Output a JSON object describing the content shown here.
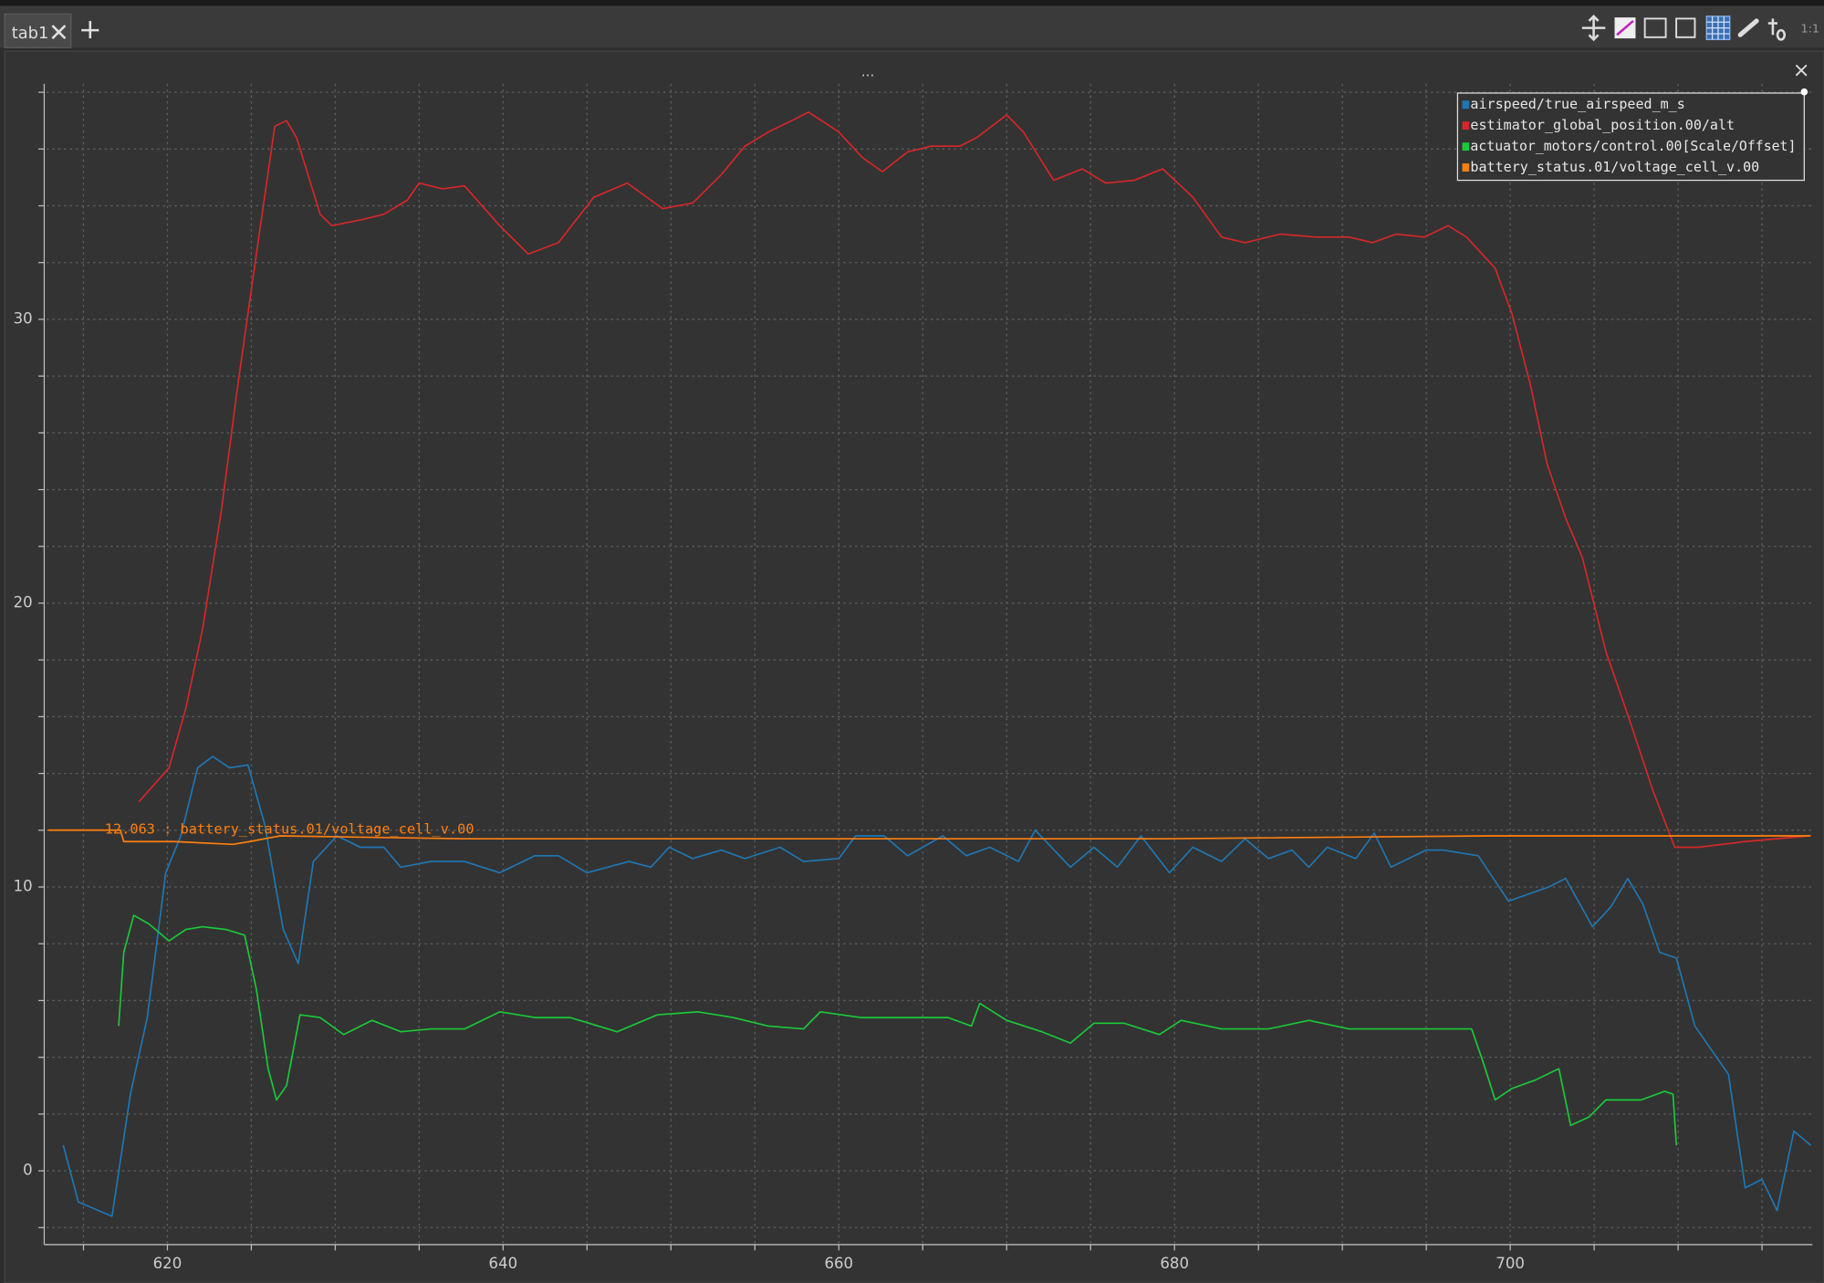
{
  "tab_bar": {
    "tabs": [
      "tab1"
    ],
    "zoom_label": "1:1"
  },
  "plot_title": "...",
  "chart_data": {
    "type": "line",
    "annotation": "12.063 : battery_status.01/voltage_cell_v.00",
    "xlim": [
      612.8,
      718.0
    ],
    "ylim": [
      -2.6,
      38.3
    ],
    "xticks": [
      620,
      640,
      660,
      680,
      700
    ],
    "yticks": [
      0,
      10,
      20,
      30
    ],
    "x_minor_ticks": [
      615,
      625,
      630,
      635,
      645,
      650,
      655,
      665,
      670,
      675,
      685,
      690,
      695,
      705,
      710,
      715
    ],
    "y_minor_ticks": [
      -2,
      2,
      4,
      6,
      8,
      12,
      14,
      16,
      18,
      22,
      24,
      26,
      28,
      32,
      34,
      36,
      38
    ],
    "grid": true,
    "legend": "top-right",
    "series": [
      {
        "name": "airspeed/true_airspeed_m_s",
        "color": "#1f77b4",
        "x": [
          613.8,
          614.7,
          616.7,
          617.8,
          618.8,
          619.9,
          620.8,
          621.8,
          622.7,
          623.7,
          624.8,
          625.8,
          626.9,
          627.8,
          628.7,
          630.1,
          631.5,
          632.9,
          633.9,
          635.7,
          637.7,
          639.8,
          641.9,
          643.3,
          645.0,
          647.5,
          648.8,
          649.9,
          651.3,
          653.0,
          654.4,
          656.5,
          657.9,
          660.0,
          661.0,
          662.7,
          664.1,
          666.2,
          667.6,
          669.0,
          670.7,
          671.7,
          673.8,
          675.2,
          676.6,
          678.0,
          679.7,
          681.1,
          682.8,
          684.2,
          685.6,
          687.0,
          688.0,
          689.1,
          690.8,
          691.9,
          692.9,
          695.0,
          696.0,
          698.1,
          699.9,
          702.3,
          703.3,
          704.9,
          706.0,
          707.0,
          707.9,
          708.9,
          709.9,
          711.0,
          713.0,
          714.0,
          715.0,
          715.9,
          716.9,
          717.9
        ],
        "values": [
          0.9,
          -1.1,
          -1.6,
          2.7,
          5.4,
          10.5,
          11.8,
          14.2,
          14.6,
          14.2,
          14.3,
          12.2,
          8.5,
          7.3,
          10.9,
          11.8,
          11.4,
          11.4,
          10.7,
          10.9,
          10.9,
          10.5,
          11.1,
          11.1,
          10.5,
          10.9,
          10.7,
          11.4,
          11.0,
          11.3,
          11.0,
          11.4,
          10.9,
          11.0,
          11.8,
          11.8,
          11.1,
          11.8,
          11.1,
          11.4,
          10.9,
          12.0,
          10.7,
          11.4,
          10.7,
          11.8,
          10.5,
          11.4,
          10.9,
          11.7,
          11.0,
          11.3,
          10.7,
          11.4,
          11.0,
          11.9,
          10.7,
          11.3,
          11.3,
          11.1,
          9.5,
          10.0,
          10.3,
          8.6,
          9.3,
          10.3,
          9.4,
          7.7,
          7.5,
          5.1,
          3.4,
          -0.6,
          -0.3,
          -1.4,
          1.4,
          0.9
        ]
      },
      {
        "name": "estimator_global_position.00/alt",
        "color": "#d62728",
        "x": [
          618.3,
          620.1,
          621.1,
          622.1,
          623.2,
          624.2,
          625.3,
          626.4,
          627.1,
          627.7,
          629.1,
          629.8,
          631.5,
          632.9,
          634.3,
          635.0,
          636.4,
          637.7,
          639.8,
          641.5,
          643.3,
          645.4,
          647.4,
          649.5,
          651.3,
          653.0,
          654.4,
          655.8,
          657.2,
          658.2,
          660.0,
          661.4,
          662.6,
          664.1,
          665.5,
          667.2,
          668.2,
          670.0,
          671.0,
          672.8,
          674.5,
          675.9,
          677.6,
          679.3,
          681.1,
          682.8,
          684.2,
          686.3,
          688.4,
          690.4,
          691.8,
          693.2,
          694.9,
          696.3,
          697.4,
          699.1,
          700.1,
          701.2,
          702.2,
          703.3,
          704.3,
          705.7,
          707.1,
          708.5,
          709.8,
          711.2,
          714.0,
          717.8
        ],
        "values": [
          13.0,
          14.2,
          16.3,
          19.1,
          23.2,
          27.7,
          32.3,
          36.8,
          37.0,
          36.4,
          33.7,
          33.3,
          33.5,
          33.7,
          34.2,
          34.8,
          34.6,
          34.7,
          33.3,
          32.3,
          32.7,
          34.3,
          34.8,
          33.9,
          34.1,
          35.1,
          36.1,
          36.6,
          37.0,
          37.3,
          36.6,
          35.7,
          35.2,
          35.9,
          36.1,
          36.1,
          36.4,
          37.2,
          36.6,
          34.9,
          35.3,
          34.8,
          34.9,
          35.3,
          34.3,
          32.9,
          32.7,
          33.0,
          32.9,
          32.9,
          32.7,
          33.0,
          32.9,
          33.3,
          32.9,
          31.8,
          30.2,
          27.7,
          24.9,
          23.0,
          21.6,
          18.3,
          15.9,
          13.4,
          11.4,
          11.4,
          11.6,
          11.8
        ]
      },
      {
        "name": "actuator_motors/control.00[Scale/Offset]",
        "color": "#1ac938",
        "x": [
          617.1,
          617.4,
          618.0,
          618.9,
          620.1,
          621.1,
          622.1,
          623.5,
          624.6,
          625.3,
          626.0,
          626.5,
          627.1,
          627.9,
          629.1,
          630.5,
          632.2,
          633.9,
          635.7,
          637.7,
          639.8,
          641.9,
          644.0,
          646.8,
          649.2,
          651.6,
          653.7,
          655.8,
          657.9,
          658.9,
          661.3,
          664.1,
          666.5,
          667.9,
          668.4,
          670.0,
          672.1,
          673.8,
          675.2,
          677.0,
          679.1,
          680.4,
          682.8,
          685.6,
          688.0,
          690.4,
          692.9,
          695.3,
          697.7,
          698.4,
          699.1,
          700.1,
          701.5,
          702.9,
          703.6,
          704.7,
          705.7,
          707.8,
          709.2,
          709.7,
          709.9
        ],
        "values": [
          5.1,
          7.7,
          9.0,
          8.7,
          8.1,
          8.5,
          8.6,
          8.5,
          8.3,
          6.4,
          3.6,
          2.5,
          3.0,
          5.5,
          5.4,
          4.8,
          5.3,
          4.9,
          5.0,
          5.0,
          5.6,
          5.4,
          5.4,
          4.9,
          5.5,
          5.6,
          5.4,
          5.1,
          5.0,
          5.6,
          5.4,
          5.4,
          5.4,
          5.1,
          5.9,
          5.3,
          4.9,
          4.5,
          5.2,
          5.2,
          4.8,
          5.3,
          5.0,
          5.0,
          5.3,
          5.0,
          5.0,
          5.0,
          5.0,
          3.8,
          2.5,
          2.9,
          3.2,
          3.6,
          1.6,
          1.9,
          2.5,
          2.5,
          2.8,
          2.7,
          0.9
        ]
      },
      {
        "name": "battery_status.01/voltage_cell_v.00",
        "color": "#ff7f0e",
        "x": [
          612.9,
          614.9,
          617.2,
          617.4,
          620.4,
          623.9,
          624.9,
          626.7,
          637.7,
          658.5,
          679.3,
          698.8,
          717.9
        ],
        "values": [
          12.0,
          12.0,
          12.0,
          11.6,
          11.6,
          11.5,
          11.6,
          11.8,
          11.7,
          11.7,
          11.7,
          11.8,
          11.8
        ]
      }
    ]
  }
}
